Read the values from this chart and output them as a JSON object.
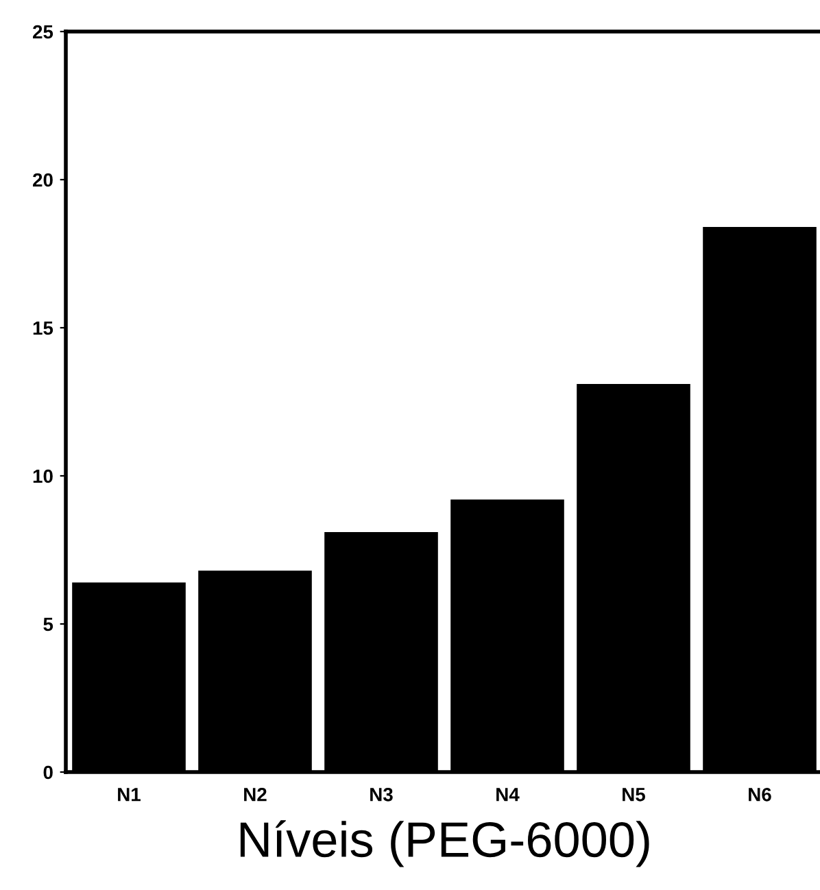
{
  "chart_data": {
    "type": "bar",
    "xlabel": "Níveis (PEG-6000)",
    "categories": [
      "N1",
      "N2",
      "N3",
      "N4",
      "N5",
      "N6"
    ],
    "values": [
      6.4,
      6.8,
      8.1,
      9.2,
      13.1,
      18.4
    ],
    "color": "#000000",
    "ylim": [
      0,
      25
    ],
    "yticks": [
      0,
      5,
      10,
      15,
      20,
      25
    ],
    "grid": false,
    "legend": false
  }
}
